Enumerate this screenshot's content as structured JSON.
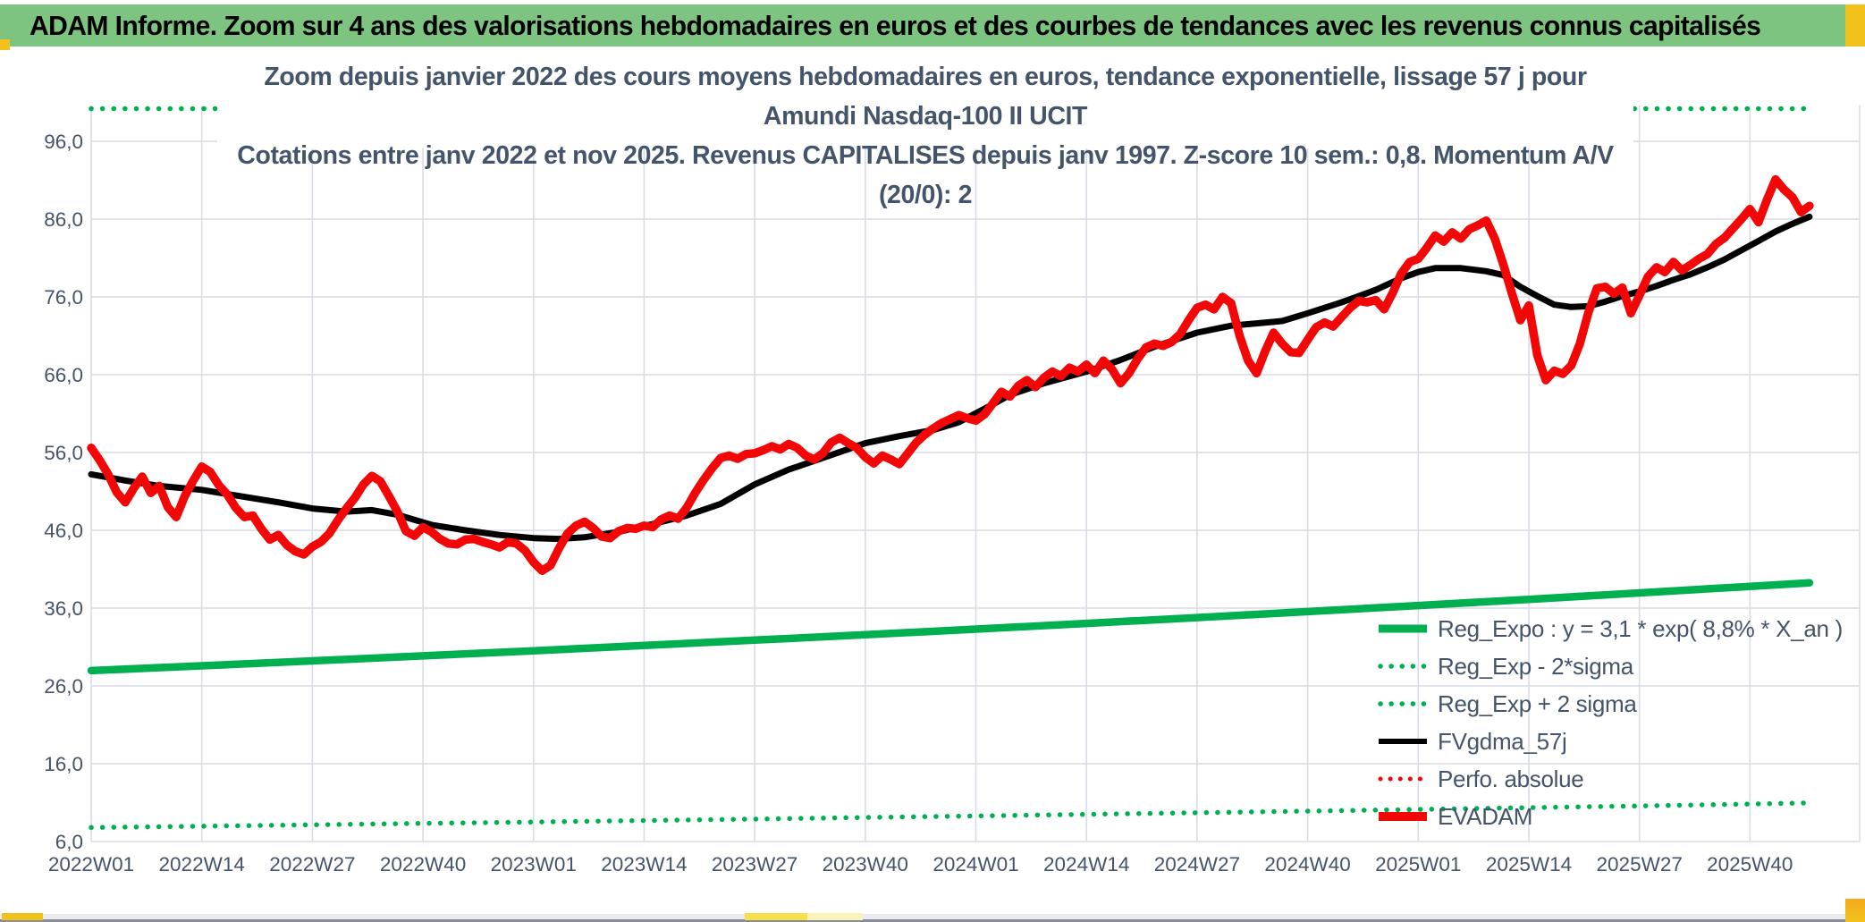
{
  "banner": {
    "title": "ADAM Informe. Zoom sur 4 ans des valorisations hebdomadaires en euros et des courbes de tendances avec les revenus connus capitalisés"
  },
  "chart_title": {
    "line1": "Zoom depuis janvier 2022 des cours moyens hebdomadaires en euros, tendance exponentielle, lissage 57 j pour Amundi Nasdaq-100 II UCIT",
    "line2": "Cotations entre janv 2022 et nov 2025. Revenus CAPITALISES depuis janv 1997. Z-score 10 sem.: 0,8. Momentum A/V (20/0): 2"
  },
  "colors": {
    "banner_bg": "#7CC47F",
    "banner_text": "#000000",
    "title_text": "#44546A",
    "axis_text": "#44546A",
    "gridline": "#D8DCE4",
    "red": "#F20606",
    "green": "#00B050",
    "black": "#000000",
    "bottom_strip": "#E9EBF0",
    "bottom_line": "#878D96",
    "gold": "#F2C21C",
    "bright_yellow": "#F7E04B",
    "pale_yellow": "#FBF3B8",
    "orange": "#F5A81C"
  },
  "legend": {
    "items": [
      {
        "label": "Reg_Expo : y = 3,1 * exp( 8,8% *  X_an )",
        "swatch": "green-solid"
      },
      {
        "label": "Reg_Exp - 2*sigma",
        "swatch": "green-dotted"
      },
      {
        "label": "Reg_Exp + 2 sigma",
        "swatch": "green-dotted"
      },
      {
        "label": "FVgdma_57j",
        "swatch": "black-solid"
      },
      {
        "label": "Perfo. absolue",
        "swatch": "red-dotted"
      },
      {
        "label": "EVADAM",
        "swatch": "red-solid"
      }
    ]
  },
  "chart_data": {
    "type": "line",
    "title": "Zoom depuis janvier 2022 des cours moyens hebdomadaires en euros, tendance exponentielle, lissage 57 j pour Amundi Nasdaq-100 II UCIT",
    "subtitle": "Cotations entre janv 2022 et nov 2025. Revenus CAPITALISES depuis janv 1997. Z-score 10 sem.: 0,8. Momentum A/V (20/0): 2",
    "grid": true,
    "legend_position": "inside-right-bottom",
    "x_axis": {
      "unit": "ISO week",
      "tick_weeks": [
        0,
        13,
        26,
        39,
        52,
        65,
        78,
        91,
        104,
        117,
        130,
        143,
        156,
        169,
        182,
        195
      ],
      "tick_labels": [
        "2022W01",
        "2022W14",
        "2022W27",
        "2022W40",
        "2023W01",
        "2023W14",
        "2023W27",
        "2023W40",
        "2024W01",
        "2024W14",
        "2024W27",
        "2024W40",
        "2025W01",
        "2025W14",
        "2025W27",
        "2025W40"
      ]
    },
    "y_axis": {
      "values": [
        96,
        86,
        76,
        66,
        56,
        46,
        36,
        26,
        16,
        6
      ],
      "labels": [
        "96,0",
        "86,0",
        "76,0",
        "66,0",
        "56,0",
        "46,0",
        "36,0",
        "26,0",
        "16,0",
        "6,0"
      ],
      "range_shown": [
        6.0,
        100.6
      ]
    },
    "series": [
      {
        "name": "Reg_Expo",
        "color": "green",
        "width": 8.5,
        "dotted": false,
        "points": [
          [
            0,
            27.97
          ],
          [
            13,
            28.59
          ],
          [
            26,
            29.22
          ],
          [
            39,
            29.86
          ],
          [
            52,
            30.52
          ],
          [
            65,
            31.19
          ],
          [
            78,
            31.88
          ],
          [
            91,
            32.58
          ],
          [
            104,
            33.3
          ],
          [
            117,
            34.03
          ],
          [
            130,
            34.78
          ],
          [
            143,
            35.55
          ],
          [
            156,
            36.33
          ],
          [
            169,
            37.13
          ],
          [
            182,
            37.95
          ],
          [
            195,
            38.79
          ],
          [
            202,
            39.25
          ]
        ]
      },
      {
        "name": "Reg_Exp-2sigma",
        "color": "green",
        "width": 5.5,
        "dotted": true,
        "dot_gap": 12.5,
        "points": [
          [
            0,
            7.8
          ],
          [
            13,
            7.97
          ],
          [
            26,
            8.15
          ],
          [
            39,
            8.33
          ],
          [
            52,
            8.51
          ],
          [
            65,
            8.7
          ],
          [
            78,
            8.89
          ],
          [
            91,
            9.09
          ],
          [
            104,
            9.29
          ],
          [
            117,
            9.49
          ],
          [
            130,
            9.7
          ],
          [
            143,
            9.91
          ],
          [
            156,
            10.13
          ],
          [
            169,
            10.36
          ],
          [
            182,
            10.58
          ],
          [
            195,
            10.82
          ],
          [
            201.5,
            10.95
          ]
        ]
      },
      {
        "name": "Reg_Exp+2sigma",
        "color": "green",
        "width": 5.5,
        "dotted": true,
        "dot_gap": 12.5,
        "points": [
          [
            0,
            100.2
          ],
          [
            201.5,
            100.2
          ]
        ]
      },
      {
        "name": "FVgdma_57j",
        "color": "black",
        "width": 7,
        "dotted": false,
        "points": [
          [
            0,
            53.2
          ],
          [
            4,
            52.4
          ],
          [
            8,
            51.7
          ],
          [
            13,
            51.2
          ],
          [
            18,
            50.3
          ],
          [
            22,
            49.6
          ],
          [
            26,
            48.8
          ],
          [
            30,
            48.4
          ],
          [
            33,
            48.6
          ],
          [
            36,
            48.0
          ],
          [
            40,
            46.7
          ],
          [
            44,
            46.0
          ],
          [
            48,
            45.4
          ],
          [
            52,
            45.0
          ],
          [
            55,
            44.9
          ],
          [
            58,
            45.1
          ],
          [
            62,
            45.8
          ],
          [
            66,
            46.8
          ],
          [
            70,
            47.9
          ],
          [
            74,
            49.4
          ],
          [
            78,
            51.9
          ],
          [
            82,
            53.8
          ],
          [
            86,
            55.3
          ],
          [
            91,
            57.2
          ],
          [
            95,
            58.1
          ],
          [
            99,
            58.9
          ],
          [
            102,
            59.9
          ],
          [
            106,
            62.2
          ],
          [
            108,
            63.4
          ],
          [
            112,
            64.9
          ],
          [
            117,
            66.4
          ],
          [
            121,
            67.9
          ],
          [
            125,
            69.6
          ],
          [
            130,
            71.4
          ],
          [
            134,
            72.3
          ],
          [
            137,
            72.6
          ],
          [
            140,
            72.9
          ],
          [
            143,
            73.9
          ],
          [
            147,
            75.3
          ],
          [
            151,
            76.9
          ],
          [
            154,
            78.4
          ],
          [
            156,
            79.2
          ],
          [
            158,
            79.7
          ],
          [
            161,
            79.7
          ],
          [
            164,
            79.3
          ],
          [
            166,
            78.8
          ],
          [
            168,
            77.3
          ],
          [
            170,
            76.1
          ],
          [
            172,
            75.0
          ],
          [
            174,
            74.7
          ],
          [
            176,
            74.8
          ],
          [
            178,
            75.4
          ],
          [
            180,
            76.1
          ],
          [
            182,
            76.7
          ],
          [
            184,
            77.4
          ],
          [
            186,
            78.2
          ],
          [
            188,
            78.9
          ],
          [
            190,
            79.8
          ],
          [
            192,
            80.8
          ],
          [
            194,
            82.0
          ],
          [
            196,
            83.2
          ],
          [
            198,
            84.4
          ],
          [
            200,
            85.4
          ],
          [
            202,
            86.3
          ]
        ]
      },
      {
        "name": "Perfo_absolue",
        "color": "red",
        "width": 5,
        "dotted": true,
        "dot_gap": 12.5,
        "hidden": true,
        "points": []
      },
      {
        "name": "EVADAM",
        "color": "red",
        "width": 9.5,
        "dotted": false,
        "start_week": 0,
        "step_weeks": 1,
        "values": [
          56.6,
          55.0,
          53.2,
          50.9,
          49.6,
          51.4,
          52.9,
          50.8,
          51.7,
          49.0,
          47.7,
          50.4,
          52.4,
          54.2,
          53.5,
          51.8,
          50.6,
          48.9,
          47.7,
          47.9,
          46.2,
          44.8,
          45.4,
          44.1,
          43.3,
          42.9,
          43.9,
          44.5,
          45.6,
          47.3,
          48.8,
          50.2,
          51.9,
          53.0,
          52.3,
          50.4,
          48.4,
          45.9,
          45.3,
          46.4,
          45.8,
          44.9,
          44.3,
          44.2,
          44.8,
          44.9,
          44.5,
          44.2,
          43.8,
          44.5,
          44.3,
          43.4,
          41.9,
          40.8,
          41.5,
          43.7,
          45.6,
          46.6,
          47.1,
          46.3,
          45.2,
          45.0,
          45.9,
          46.3,
          46.2,
          46.6,
          46.4,
          47.4,
          47.9,
          47.5,
          48.9,
          50.8,
          52.5,
          54.0,
          55.3,
          55.6,
          55.2,
          55.8,
          55.9,
          56.3,
          56.8,
          56.4,
          57.1,
          56.6,
          55.6,
          55.1,
          55.9,
          57.3,
          57.9,
          57.2,
          56.6,
          55.4,
          54.6,
          55.6,
          55.1,
          54.5,
          55.9,
          57.3,
          58.3,
          59.1,
          59.8,
          60.3,
          60.8,
          60.4,
          60.1,
          60.9,
          62.3,
          63.8,
          63.2,
          64.6,
          65.3,
          64.4,
          65.6,
          66.4,
          65.8,
          66.9,
          66.4,
          67.3,
          66.2,
          67.8,
          66.7,
          64.9,
          66.2,
          68.0,
          69.5,
          70.0,
          69.7,
          70.2,
          71.2,
          73.0,
          74.6,
          75.0,
          74.4,
          76.0,
          75.2,
          71.0,
          67.8,
          66.2,
          69.0,
          71.4,
          70.0,
          68.9,
          68.8,
          70.5,
          72.1,
          72.7,
          72.2,
          73.4,
          74.6,
          75.5,
          75.3,
          75.6,
          74.4,
          76.5,
          79.0,
          80.5,
          80.9,
          82.3,
          83.9,
          83.1,
          84.3,
          83.5,
          84.7,
          85.2,
          85.8,
          83.5,
          80.2,
          76.5,
          73.0,
          74.9,
          68.5,
          65.3,
          66.5,
          66.1,
          67.2,
          70.0,
          74.0,
          77.1,
          77.3,
          76.4,
          77.2,
          73.9,
          76.2,
          78.6,
          79.8,
          79.2,
          80.5,
          79.4,
          80.1,
          80.9,
          81.5,
          82.8,
          83.6,
          84.8,
          86.0,
          87.3,
          85.6,
          88.5,
          91.1,
          89.8,
          88.8,
          86.9,
          87.7
        ]
      }
    ]
  }
}
